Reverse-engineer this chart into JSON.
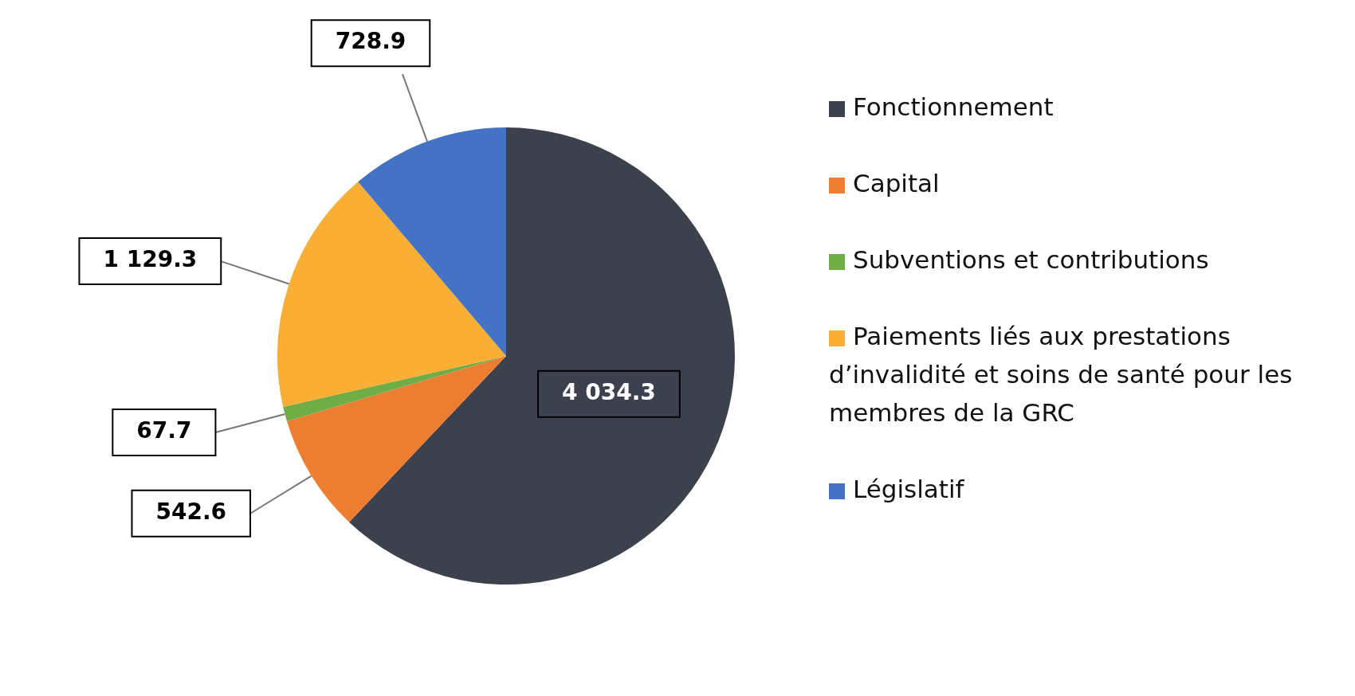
{
  "chart_data": {
    "type": "pie",
    "categories": [
      "Fonctionnement",
      "Capital",
      "Subventions et contributions",
      "Paiements liés aux prestations d’invalidité et soins de santé pour les membres de la GRC",
      "Législatif"
    ],
    "values": [
      4034.3,
      542.6,
      67.7,
      1129.3,
      728.9
    ],
    "colors": [
      "#3d414d",
      "#ed7d31",
      "#70ad47",
      "#f9ae35",
      "#4472c4"
    ],
    "value_labels": [
      "4 034.3",
      "542.6",
      "67.7",
      "1 129.3",
      "728.9"
    ],
    "legend": "right"
  }
}
